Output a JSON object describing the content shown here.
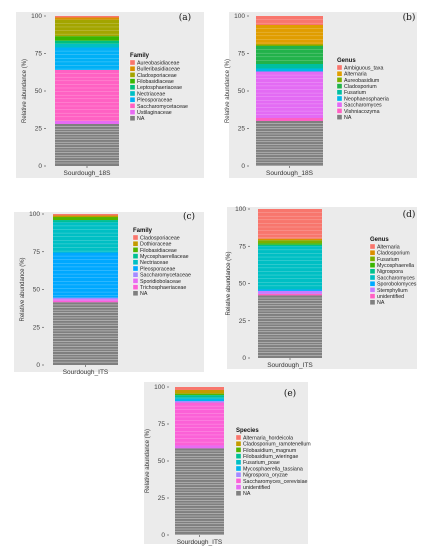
{
  "chart_data": [
    {
      "panel": "(a)",
      "type": "bar",
      "stacked": true,
      "categories": [
        "Sourdough_18S"
      ],
      "xlabel": "Sourdough_18S",
      "ylabel": "Relative abundance (%)",
      "ylim": [
        0,
        100
      ],
      "yticks": [
        0,
        25,
        50,
        75,
        100
      ],
      "legend_title": "Family",
      "series": [
        {
          "name": "Aureobasidiaceae",
          "color": "#F8766D",
          "value": 1.0
        },
        {
          "name": "Bulleribasidiaceae",
          "color": "#D89000",
          "value": 1.5
        },
        {
          "name": "Cladosporiaceae",
          "color": "#A3A500",
          "value": 11.0
        },
        {
          "name": "Filobasidiaceae",
          "color": "#39B600",
          "value": 3.0
        },
        {
          "name": "Leptosphaeriaceae",
          "color": "#00BF7D",
          "value": 2.0
        },
        {
          "name": "Nectriaceae",
          "color": "#00BFC4",
          "value": 2.5
        },
        {
          "name": "Pleosporaceae",
          "color": "#00B0F6",
          "value": 15.0
        },
        {
          "name": "Saccharomycetaceae",
          "color": "#FF61C3",
          "value": 34.0
        },
        {
          "name": "Ustilaginaceae",
          "color": "#E76BF3",
          "value": 2.0
        },
        {
          "name": "NA",
          "color": "#7F7F7F",
          "value": 28.0
        }
      ]
    },
    {
      "panel": "(b)",
      "type": "bar",
      "stacked": true,
      "categories": [
        "Sourdough_18S"
      ],
      "xlabel": "Sourdough_18S",
      "ylabel": "Relative abundance (%)",
      "ylim": [
        0,
        100
      ],
      "yticks": [
        0,
        25,
        50,
        75,
        100
      ],
      "legend_title": "Genus",
      "series": [
        {
          "name": "Ambiguous_taxa",
          "color": "#F8766D",
          "value": 6.0
        },
        {
          "name": "Alternaria",
          "color": "#E09D00",
          "value": 13.0
        },
        {
          "name": "Aureobasidium",
          "color": "#7CAE00",
          "value": 1.0
        },
        {
          "name": "Cladosporium",
          "color": "#22B24A",
          "value": 12.0
        },
        {
          "name": "Fusarium",
          "color": "#00BFA0",
          "value": 3.0
        },
        {
          "name": "Neophaeosphaeria",
          "color": "#00B8E7",
          "value": 2.0
        },
        {
          "name": "Saccharomyces",
          "color": "#E36BF4",
          "value": 31.0
        },
        {
          "name": "Vishniacozyma",
          "color": "#FF61C3",
          "value": 2.0
        },
        {
          "name": "NA",
          "color": "#7F7F7F",
          "value": 30.0
        }
      ]
    },
    {
      "panel": "(c)",
      "type": "bar",
      "stacked": true,
      "categories": [
        "Sourdough_ITS"
      ],
      "xlabel": "Sourdough_ITS",
      "ylabel": "Relative abundance (%)",
      "ylim": [
        0,
        100
      ],
      "yticks": [
        0,
        25,
        50,
        75,
        100
      ],
      "legend_title": "Family",
      "series": [
        {
          "name": "Cladosporiaceae",
          "color": "#F8766D",
          "value": 1.0
        },
        {
          "name": "Dothioraceae",
          "color": "#C49A00",
          "value": 1.0
        },
        {
          "name": "Filobasidiaceae",
          "color": "#53B400",
          "value": 2.0
        },
        {
          "name": "Mycosphaerellaceae",
          "color": "#00C094",
          "value": 1.5
        },
        {
          "name": "Nectriaceae",
          "color": "#00BFC4",
          "value": 20.0
        },
        {
          "name": "Pleosporaceae",
          "color": "#00A8FF",
          "value": 30.0
        },
        {
          "name": "Saccharomycetaceae",
          "color": "#A58AFF",
          "value": 1.0
        },
        {
          "name": "Sporidiobolaceae",
          "color": "#E76BF3",
          "value": 1.0
        },
        {
          "name": "Trichosphaeriaceae",
          "color": "#FB61D7",
          "value": 1.0
        },
        {
          "name": "NA",
          "color": "#7F7F7F",
          "value": 41.5
        }
      ]
    },
    {
      "panel": "(d)",
      "type": "bar",
      "stacked": true,
      "categories": [
        "Sourdough_ITS"
      ],
      "xlabel": "Sourdough_ITS",
      "ylabel": "Relative abundance (%)",
      "ylim": [
        0,
        100
      ],
      "yticks": [
        0,
        25,
        50,
        75,
        100
      ],
      "legend_title": "Genus",
      "series": [
        {
          "name": "Alternaria",
          "color": "#F8766D",
          "value": 20.0
        },
        {
          "name": "Cladosporium",
          "color": "#DB8E00",
          "value": 1.0
        },
        {
          "name": "Fusarium",
          "color": "#7CAE00",
          "value": 2.0
        },
        {
          "name": "Mycosphaerella",
          "color": "#39B600",
          "value": 1.0
        },
        {
          "name": "Nigrospora",
          "color": "#00C08B",
          "value": 1.0
        },
        {
          "name": "Saccharomyces",
          "color": "#00BFC4",
          "value": 29.0
        },
        {
          "name": "Sporobolomyces",
          "color": "#00A9FF",
          "value": 1.0
        },
        {
          "name": "Stemphylium",
          "color": "#C77CFF",
          "value": 2.0
        },
        {
          "name": "unidentified",
          "color": "#FF61C3",
          "value": 1.0
        },
        {
          "name": "NA",
          "color": "#7F7F7F",
          "value": 42.0
        }
      ]
    },
    {
      "panel": "(e)",
      "type": "bar",
      "stacked": true,
      "categories": [
        "Sourdough_ITS"
      ],
      "xlabel": "Sourdough_ITS",
      "ylabel": "Relative abundance (%)",
      "ylim": [
        0,
        100
      ],
      "yticks": [
        0,
        25,
        50,
        75,
        100
      ],
      "legend_title": "Species",
      "series": [
        {
          "name": "Alternaria_hordeicola",
          "color": "#F8766D",
          "value": 2.0
        },
        {
          "name": "Cladosporium_ramotenellum",
          "color": "#C49A00",
          "value": 2.5
        },
        {
          "name": "Filobasidium_magnum",
          "color": "#53B400",
          "value": 1.0
        },
        {
          "name": "Filobasidium_wieringae",
          "color": "#00C094",
          "value": 1.5
        },
        {
          "name": "Fusarium_poae",
          "color": "#00BFC4",
          "value": 1.0
        },
        {
          "name": "Mycosphaerella_tassiana",
          "color": "#00B6EB",
          "value": 1.5
        },
        {
          "name": "Nigrospora_oryzae",
          "color": "#A58AFF",
          "value": 1.0
        },
        {
          "name": "Saccharomyces_cerevisiae",
          "color": "#FB61D7",
          "value": 29.0
        },
        {
          "name": "unidentified",
          "color": "#E76BF3",
          "value": 2.0
        },
        {
          "name": "NA",
          "color": "#7F7F7F",
          "value": 58.5
        }
      ]
    }
  ]
}
